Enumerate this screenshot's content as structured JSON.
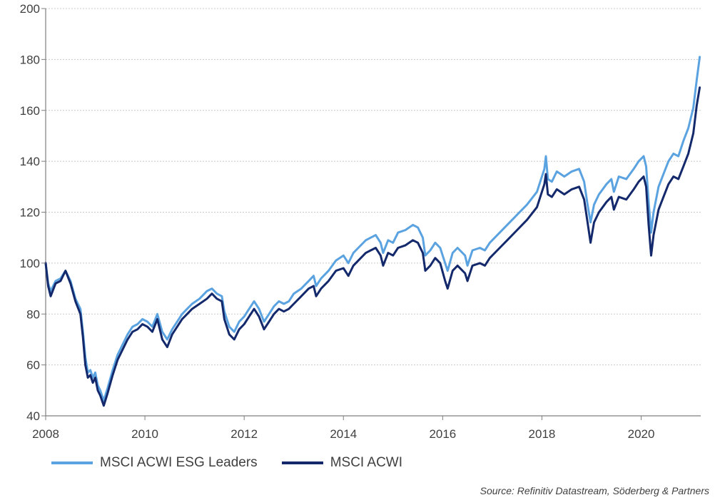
{
  "chart_data": {
    "type": "line",
    "title": "",
    "xlabel": "",
    "ylabel": "",
    "xlim": [
      2008,
      2021.2
    ],
    "ylim": [
      40,
      200
    ],
    "y_ticks": [
      40,
      60,
      80,
      100,
      120,
      140,
      160,
      180,
      200
    ],
    "x_ticks": [
      2008,
      2010,
      2012,
      2014,
      2016,
      2018,
      2020
    ],
    "y_tick_labels": [
      "40",
      "60",
      "80",
      "100",
      "120",
      "140",
      "160",
      "180",
      "200"
    ],
    "x_tick_labels": [
      "2008",
      "2010",
      "2012",
      "2014",
      "2016",
      "2018",
      "2020"
    ],
    "grid": "horizontal dotted",
    "legend_position": "bottom",
    "series": [
      {
        "name": "MSCI ACWI ESG Leaders",
        "color": "#5ba3e0",
        "points": [
          [
            2008.0,
            100
          ],
          [
            2008.05,
            92
          ],
          [
            2008.1,
            89
          ],
          [
            2008.2,
            93
          ],
          [
            2008.3,
            94
          ],
          [
            2008.4,
            97
          ],
          [
            2008.5,
            93
          ],
          [
            2008.6,
            86
          ],
          [
            2008.7,
            82
          ],
          [
            2008.75,
            73
          ],
          [
            2008.8,
            63
          ],
          [
            2008.85,
            57
          ],
          [
            2008.9,
            58
          ],
          [
            2008.95,
            55
          ],
          [
            2009.0,
            57
          ],
          [
            2009.05,
            52
          ],
          [
            2009.1,
            50
          ],
          [
            2009.17,
            46
          ],
          [
            2009.25,
            51
          ],
          [
            2009.35,
            58
          ],
          [
            2009.45,
            64
          ],
          [
            2009.55,
            68
          ],
          [
            2009.65,
            72
          ],
          [
            2009.75,
            75
          ],
          [
            2009.85,
            76
          ],
          [
            2009.95,
            78
          ],
          [
            2010.05,
            77
          ],
          [
            2010.15,
            75
          ],
          [
            2010.25,
            80
          ],
          [
            2010.35,
            73
          ],
          [
            2010.45,
            70
          ],
          [
            2010.55,
            74
          ],
          [
            2010.65,
            77
          ],
          [
            2010.75,
            80
          ],
          [
            2010.85,
            82
          ],
          [
            2010.95,
            84
          ],
          [
            2011.1,
            86
          ],
          [
            2011.25,
            89
          ],
          [
            2011.35,
            90
          ],
          [
            2011.45,
            88
          ],
          [
            2011.55,
            87
          ],
          [
            2011.6,
            81
          ],
          [
            2011.7,
            75
          ],
          [
            2011.8,
            73
          ],
          [
            2011.9,
            77
          ],
          [
            2012.0,
            79
          ],
          [
            2012.1,
            82
          ],
          [
            2012.2,
            85
          ],
          [
            2012.3,
            82
          ],
          [
            2012.4,
            77
          ],
          [
            2012.5,
            80
          ],
          [
            2012.6,
            83
          ],
          [
            2012.7,
            85
          ],
          [
            2012.8,
            84
          ],
          [
            2012.9,
            85
          ],
          [
            2013.0,
            88
          ],
          [
            2013.15,
            90
          ],
          [
            2013.3,
            93
          ],
          [
            2013.4,
            95
          ],
          [
            2013.45,
            91
          ],
          [
            2013.55,
            94
          ],
          [
            2013.7,
            97
          ],
          [
            2013.85,
            101
          ],
          [
            2014.0,
            103
          ],
          [
            2014.1,
            100
          ],
          [
            2014.2,
            104
          ],
          [
            2014.3,
            106
          ],
          [
            2014.45,
            109
          ],
          [
            2014.55,
            110
          ],
          [
            2014.65,
            111
          ],
          [
            2014.75,
            108
          ],
          [
            2014.8,
            104
          ],
          [
            2014.9,
            109
          ],
          [
            2015.0,
            108
          ],
          [
            2015.1,
            112
          ],
          [
            2015.25,
            113
          ],
          [
            2015.4,
            115
          ],
          [
            2015.5,
            114
          ],
          [
            2015.6,
            110
          ],
          [
            2015.65,
            103
          ],
          [
            2015.75,
            105
          ],
          [
            2015.85,
            108
          ],
          [
            2015.95,
            106
          ],
          [
            2016.05,
            100
          ],
          [
            2016.1,
            97
          ],
          [
            2016.2,
            104
          ],
          [
            2016.3,
            106
          ],
          [
            2016.45,
            103
          ],
          [
            2016.5,
            99
          ],
          [
            2016.6,
            105
          ],
          [
            2016.75,
            106
          ],
          [
            2016.85,
            105
          ],
          [
            2016.95,
            108
          ],
          [
            2017.1,
            111
          ],
          [
            2017.3,
            115
          ],
          [
            2017.5,
            119
          ],
          [
            2017.7,
            123
          ],
          [
            2017.9,
            128
          ],
          [
            2018.05,
            137
          ],
          [
            2018.08,
            142
          ],
          [
            2018.12,
            133
          ],
          [
            2018.2,
            132
          ],
          [
            2018.3,
            136
          ],
          [
            2018.45,
            134
          ],
          [
            2018.6,
            136
          ],
          [
            2018.75,
            137
          ],
          [
            2018.85,
            132
          ],
          [
            2018.92,
            123
          ],
          [
            2018.98,
            116
          ],
          [
            2019.05,
            123
          ],
          [
            2019.15,
            127
          ],
          [
            2019.3,
            131
          ],
          [
            2019.4,
            133
          ],
          [
            2019.45,
            128
          ],
          [
            2019.55,
            134
          ],
          [
            2019.7,
            133
          ],
          [
            2019.85,
            137
          ],
          [
            2019.95,
            140
          ],
          [
            2020.05,
            142
          ],
          [
            2020.1,
            138
          ],
          [
            2020.15,
            124
          ],
          [
            2020.2,
            112
          ],
          [
            2020.25,
            120
          ],
          [
            2020.35,
            130
          ],
          [
            2020.45,
            135
          ],
          [
            2020.55,
            140
          ],
          [
            2020.65,
            143
          ],
          [
            2020.75,
            142
          ],
          [
            2020.85,
            148
          ],
          [
            2020.95,
            153
          ],
          [
            2021.05,
            161
          ],
          [
            2021.12,
            172
          ],
          [
            2021.18,
            181
          ]
        ]
      },
      {
        "name": "MSCI ACWI",
        "color": "#13296b",
        "points": [
          [
            2008.0,
            100
          ],
          [
            2008.05,
            91
          ],
          [
            2008.1,
            87
          ],
          [
            2008.2,
            92
          ],
          [
            2008.3,
            93
          ],
          [
            2008.4,
            97
          ],
          [
            2008.5,
            92
          ],
          [
            2008.6,
            85
          ],
          [
            2008.7,
            80
          ],
          [
            2008.75,
            71
          ],
          [
            2008.8,
            60
          ],
          [
            2008.85,
            55
          ],
          [
            2008.9,
            56
          ],
          [
            2008.95,
            53
          ],
          [
            2009.0,
            55
          ],
          [
            2009.05,
            50
          ],
          [
            2009.1,
            48
          ],
          [
            2009.17,
            44
          ],
          [
            2009.25,
            49
          ],
          [
            2009.35,
            56
          ],
          [
            2009.45,
            62
          ],
          [
            2009.55,
            66
          ],
          [
            2009.65,
            70
          ],
          [
            2009.75,
            73
          ],
          [
            2009.85,
            74
          ],
          [
            2009.95,
            76
          ],
          [
            2010.05,
            75
          ],
          [
            2010.15,
            73
          ],
          [
            2010.25,
            78
          ],
          [
            2010.35,
            70
          ],
          [
            2010.45,
            67
          ],
          [
            2010.55,
            72
          ],
          [
            2010.65,
            75
          ],
          [
            2010.75,
            78
          ],
          [
            2010.85,
            80
          ],
          [
            2010.95,
            82
          ],
          [
            2011.1,
            84
          ],
          [
            2011.25,
            86
          ],
          [
            2011.35,
            88
          ],
          [
            2011.45,
            86
          ],
          [
            2011.55,
            85
          ],
          [
            2011.6,
            78
          ],
          [
            2011.7,
            72
          ],
          [
            2011.8,
            70
          ],
          [
            2011.9,
            74
          ],
          [
            2012.0,
            76
          ],
          [
            2012.1,
            79
          ],
          [
            2012.2,
            82
          ],
          [
            2012.3,
            79
          ],
          [
            2012.4,
            74
          ],
          [
            2012.5,
            77
          ],
          [
            2012.6,
            80
          ],
          [
            2012.7,
            82
          ],
          [
            2012.8,
            81
          ],
          [
            2012.9,
            82
          ],
          [
            2013.0,
            84
          ],
          [
            2013.15,
            87
          ],
          [
            2013.3,
            90
          ],
          [
            2013.4,
            91
          ],
          [
            2013.45,
            87
          ],
          [
            2013.55,
            90
          ],
          [
            2013.7,
            93
          ],
          [
            2013.85,
            97
          ],
          [
            2014.0,
            98
          ],
          [
            2014.1,
            95
          ],
          [
            2014.2,
            99
          ],
          [
            2014.3,
            101
          ],
          [
            2014.45,
            104
          ],
          [
            2014.55,
            105
          ],
          [
            2014.65,
            106
          ],
          [
            2014.75,
            103
          ],
          [
            2014.8,
            99
          ],
          [
            2014.9,
            104
          ],
          [
            2015.0,
            103
          ],
          [
            2015.1,
            106
          ],
          [
            2015.25,
            107
          ],
          [
            2015.4,
            109
          ],
          [
            2015.5,
            108
          ],
          [
            2015.6,
            104
          ],
          [
            2015.65,
            97
          ],
          [
            2015.75,
            99
          ],
          [
            2015.85,
            102
          ],
          [
            2015.95,
            100
          ],
          [
            2016.05,
            93
          ],
          [
            2016.1,
            90
          ],
          [
            2016.2,
            97
          ],
          [
            2016.3,
            99
          ],
          [
            2016.45,
            96
          ],
          [
            2016.5,
            93
          ],
          [
            2016.6,
            99
          ],
          [
            2016.75,
            100
          ],
          [
            2016.85,
            99
          ],
          [
            2016.95,
            102
          ],
          [
            2017.1,
            105
          ],
          [
            2017.3,
            109
          ],
          [
            2017.5,
            113
          ],
          [
            2017.7,
            117
          ],
          [
            2017.9,
            122
          ],
          [
            2018.05,
            131
          ],
          [
            2018.08,
            135
          ],
          [
            2018.12,
            127
          ],
          [
            2018.2,
            126
          ],
          [
            2018.3,
            129
          ],
          [
            2018.45,
            127
          ],
          [
            2018.6,
            129
          ],
          [
            2018.75,
            130
          ],
          [
            2018.85,
            125
          ],
          [
            2018.92,
            116
          ],
          [
            2018.98,
            108
          ],
          [
            2019.05,
            116
          ],
          [
            2019.15,
            120
          ],
          [
            2019.3,
            124
          ],
          [
            2019.4,
            126
          ],
          [
            2019.45,
            121
          ],
          [
            2019.55,
            126
          ],
          [
            2019.7,
            125
          ],
          [
            2019.85,
            129
          ],
          [
            2019.95,
            132
          ],
          [
            2020.05,
            134
          ],
          [
            2020.1,
            130
          ],
          [
            2020.15,
            115
          ],
          [
            2020.2,
            103
          ],
          [
            2020.25,
            111
          ],
          [
            2020.35,
            121
          ],
          [
            2020.45,
            126
          ],
          [
            2020.55,
            131
          ],
          [
            2020.65,
            134
          ],
          [
            2020.75,
            133
          ],
          [
            2020.85,
            138
          ],
          [
            2020.95,
            143
          ],
          [
            2021.05,
            151
          ],
          [
            2021.12,
            162
          ],
          [
            2021.18,
            169
          ]
        ]
      }
    ]
  },
  "legend": {
    "items": [
      {
        "label": "MSCI ACWI ESG Leaders",
        "color": "#5ba3e0"
      },
      {
        "label": "MSCI ACWI",
        "color": "#13296b"
      }
    ]
  },
  "source": "Source: Refinitiv Datastream, Söderberg & Partners"
}
